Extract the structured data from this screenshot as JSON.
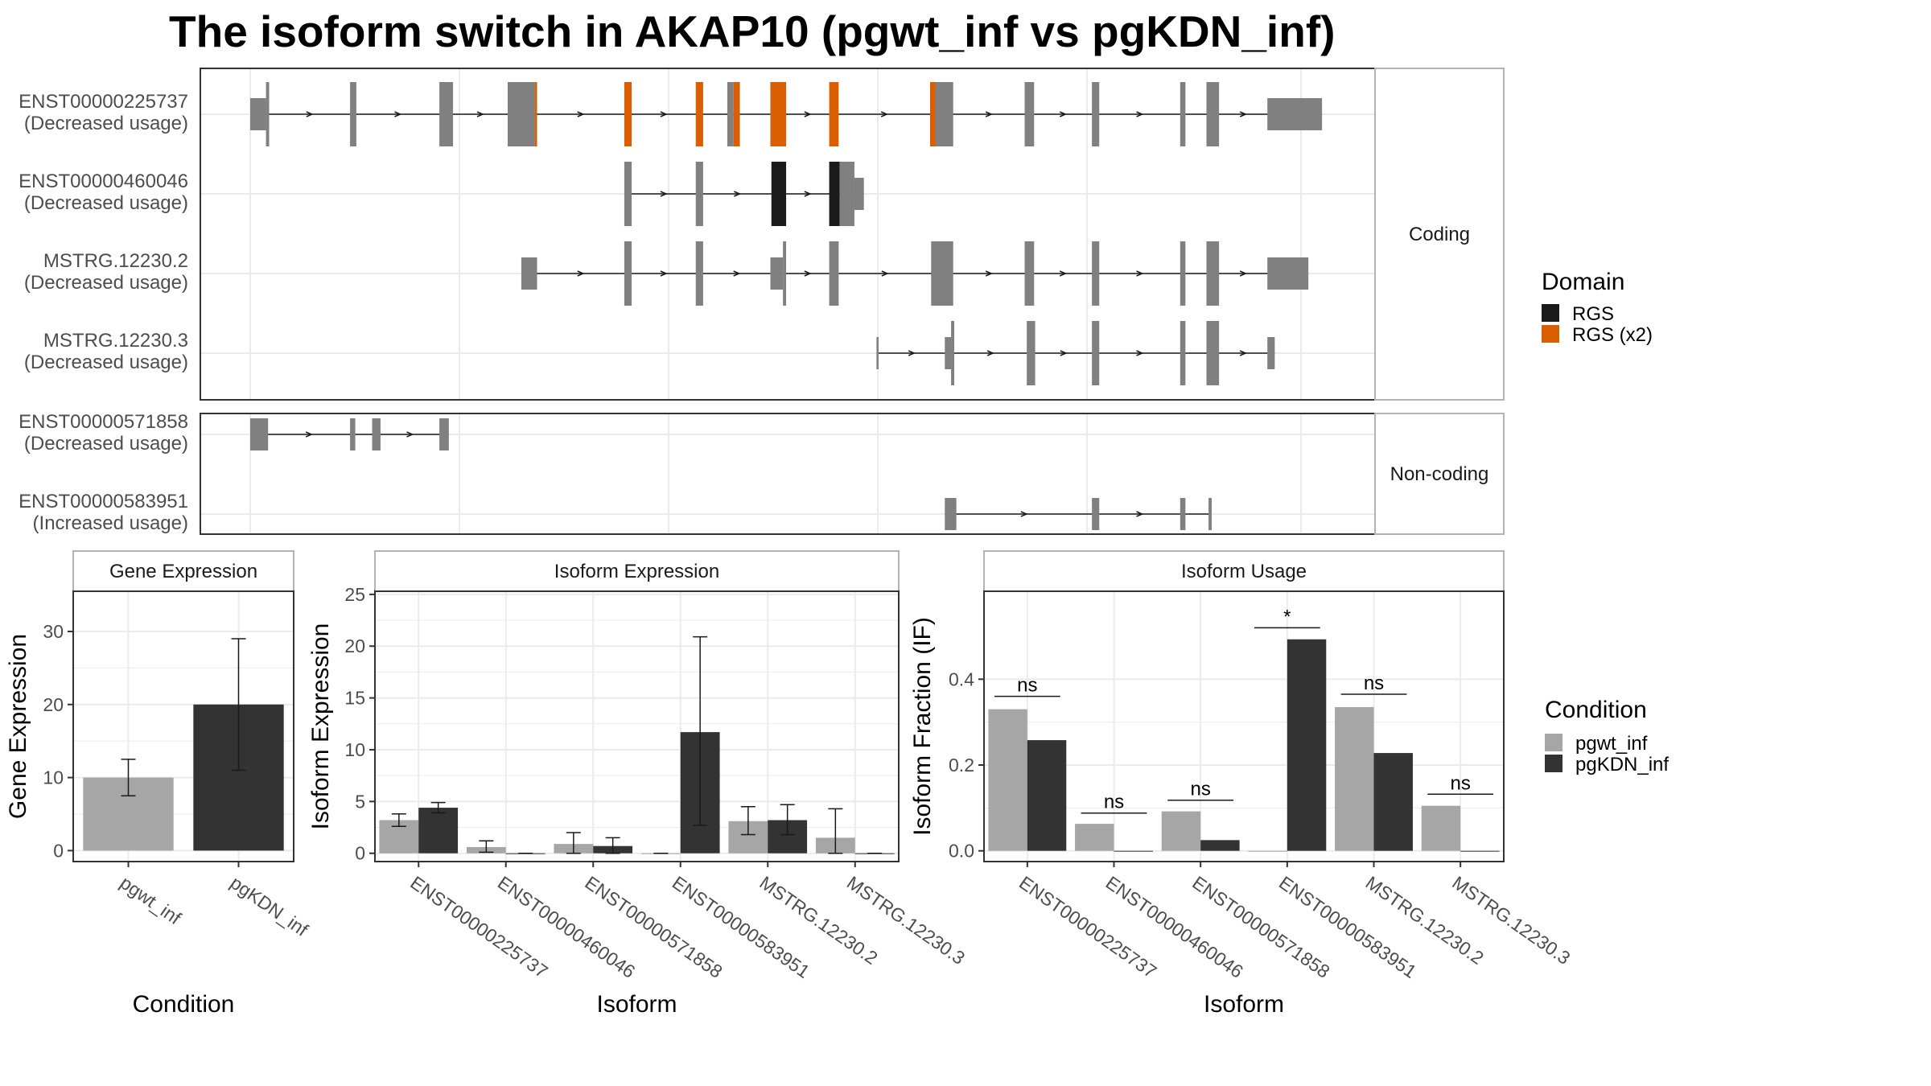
{
  "title": "The isoform switch in AKAP10 (pgwt_inf vs pgKDN_inf)",
  "structure": {
    "coords": [
      0,
      1000
    ],
    "panels": [
      {
        "label": "Coding",
        "transcripts": [
          {
            "id": "ENST00000225737",
            "note": "(Decreased usage)",
            "start": 0,
            "end": 1020,
            "exons": [
              {
                "s": 0,
                "e": 15,
                "t": "utr"
              },
              {
                "s": 15,
                "e": 18,
                "t": "cds"
              },
              {
                "s": 95,
                "e": 101,
                "t": "cds"
              },
              {
                "s": 180,
                "e": 193,
                "t": "cds"
              },
              {
                "s": 245,
                "e": 271,
                "t": "cds"
              },
              {
                "s": 271,
                "e": 273,
                "t": "RGS (x2)"
              },
              {
                "s": 356,
                "e": 363,
                "t": "RGS (x2)"
              },
              {
                "s": 424,
                "e": 431,
                "t": "RGS (x2)"
              },
              {
                "s": 454,
                "e": 460,
                "t": "cds"
              },
              {
                "s": 460,
                "e": 466,
                "t": "RGS (x2)"
              },
              {
                "s": 495,
                "e": 510,
                "t": "RGS (x2)"
              },
              {
                "s": 551,
                "e": 560,
                "t": "RGS (x2)"
              },
              {
                "s": 647,
                "e": 652,
                "t": "RGS (x2)"
              },
              {
                "s": 652,
                "e": 669,
                "t": "cds"
              },
              {
                "s": 737,
                "e": 746,
                "t": "cds"
              },
              {
                "s": 801,
                "e": 808,
                "t": "cds"
              },
              {
                "s": 885,
                "e": 890,
                "t": "cds"
              },
              {
                "s": 910,
                "e": 922,
                "t": "cds"
              },
              {
                "s": 968,
                "e": 1020,
                "t": "utr"
              }
            ]
          },
          {
            "id": "ENST00000460046",
            "note": "(Decreased usage)",
            "start": 356,
            "end": 584,
            "exons": [
              {
                "s": 356,
                "e": 363,
                "t": "cds"
              },
              {
                "s": 424,
                "e": 431,
                "t": "cds"
              },
              {
                "s": 496,
                "e": 510,
                "t": "RGS"
              },
              {
                "s": 551,
                "e": 561,
                "t": "RGS"
              },
              {
                "s": 561,
                "e": 575,
                "t": "cds"
              },
              {
                "s": 575,
                "e": 584,
                "t": "utr"
              }
            ]
          },
          {
            "id": "MSTRG.12230.2",
            "note": "(Decreased usage)",
            "start": 258,
            "end": 1007,
            "exons": [
              {
                "s": 258,
                "e": 273,
                "t": "utr"
              },
              {
                "s": 356,
                "e": 363,
                "t": "cds"
              },
              {
                "s": 424,
                "e": 431,
                "t": "cds"
              },
              {
                "s": 495,
                "e": 507,
                "t": "utr"
              },
              {
                "s": 507,
                "e": 510,
                "t": "cds"
              },
              {
                "s": 551,
                "e": 560,
                "t": "cds"
              },
              {
                "s": 648,
                "e": 669,
                "t": "cds"
              },
              {
                "s": 737,
                "e": 746,
                "t": "cds"
              },
              {
                "s": 801,
                "e": 808,
                "t": "cds"
              },
              {
                "s": 885,
                "e": 890,
                "t": "cds"
              },
              {
                "s": 910,
                "e": 922,
                "t": "cds"
              },
              {
                "s": 968,
                "e": 1007,
                "t": "utr"
              }
            ]
          },
          {
            "id": "MSTRG.12230.3",
            "note": "(Decreased usage)",
            "start": 596,
            "end": 975,
            "exons": [
              {
                "s": 596,
                "e": 598,
                "t": "utr"
              },
              {
                "s": 661,
                "e": 667,
                "t": "utr"
              },
              {
                "s": 667,
                "e": 670,
                "t": "cds"
              },
              {
                "s": 739,
                "e": 747,
                "t": "cds"
              },
              {
                "s": 801,
                "e": 808,
                "t": "cds"
              },
              {
                "s": 885,
                "e": 890,
                "t": "cds"
              },
              {
                "s": 910,
                "e": 922,
                "t": "cds"
              },
              {
                "s": 968,
                "e": 975,
                "t": "utr"
              }
            ]
          }
        ]
      },
      {
        "label": "Non-coding",
        "transcripts": [
          {
            "id": "ENST00000571858",
            "note": "(Decreased usage)",
            "start": 0,
            "end": 189,
            "exons": [
              {
                "s": 0,
                "e": 17,
                "t": "nc"
              },
              {
                "s": 95,
                "e": 100,
                "t": "nc"
              },
              {
                "s": 116,
                "e": 124,
                "t": "nc"
              },
              {
                "s": 180,
                "e": 189,
                "t": "nc"
              }
            ]
          },
          {
            "id": "ENST00000583951",
            "note": "(Increased usage)",
            "start": 661,
            "end": 915,
            "exons": [
              {
                "s": 661,
                "e": 672,
                "t": "nc"
              },
              {
                "s": 801,
                "e": 808,
                "t": "nc"
              },
              {
                "s": 885,
                "e": 890,
                "t": "nc"
              },
              {
                "s": 912,
                "e": 915,
                "t": "nc"
              }
            ]
          }
        ]
      }
    ]
  },
  "legend_domain": {
    "title": "Domain",
    "items": [
      {
        "label": "RGS",
        "color": "#1a1a1a"
      },
      {
        "label": "RGS (x2)",
        "color": "#d95f02"
      }
    ]
  },
  "legend_condition": {
    "title": "Condition",
    "items": [
      {
        "label": "pgwt_inf",
        "color": "#a6a6a6"
      },
      {
        "label": "pgKDN_inf",
        "color": "#333333"
      }
    ]
  },
  "colors": {
    "exon": "#808080",
    "rgs": "#1a1a1a",
    "rgs_x2": "#d95f02",
    "grid": "#ebebeb"
  },
  "chart_data": [
    {
      "type": "bar",
      "title": "Gene Expression",
      "xlabel": "Condition",
      "ylabel": "Gene Expression",
      "categories": [
        "pgwt_inf",
        "pgKDN_inf"
      ],
      "values": [
        10,
        20
      ],
      "error_low": [
        7.5,
        11
      ],
      "error_high": [
        12.5,
        29
      ],
      "ylim": [
        -1.5,
        35.5
      ],
      "yticks": [
        0,
        10,
        20,
        30
      ],
      "grid": true
    },
    {
      "type": "bar",
      "title": "Isoform Expression",
      "xlabel": "Isoform",
      "ylabel": "Isoform Expression",
      "categories": [
        "ENST00000225737",
        "ENST00000460046",
        "ENST00000571858",
        "ENST00000583951",
        "MSTRG.12230.2",
        "MSTRG.12230.3"
      ],
      "series": [
        {
          "name": "pgwt_inf",
          "values": [
            3.2,
            0.6,
            0.9,
            0,
            3.1,
            1.5
          ],
          "error_low": [
            2.6,
            0.1,
            0,
            0,
            1.8,
            0
          ],
          "error_high": [
            3.8,
            1.2,
            2.0,
            0,
            4.5,
            4.3
          ]
        },
        {
          "name": "pgKDN_inf",
          "values": [
            4.4,
            0,
            0.7,
            11.7,
            3.2,
            0
          ],
          "error_low": [
            3.9,
            0,
            0,
            2.7,
            1.8,
            0
          ],
          "error_high": [
            4.9,
            0,
            1.5,
            20.9,
            4.7,
            0
          ]
        }
      ],
      "ylim": [
        -0.8,
        25.3
      ],
      "yticks": [
        0,
        5,
        10,
        15,
        20,
        25
      ],
      "grid": true
    },
    {
      "type": "bar",
      "title": "Isoform Usage",
      "xlabel": "Isoform",
      "ylabel": "Isoform Fraction (IF)",
      "categories": [
        "ENST00000225737",
        "ENST00000460046",
        "ENST00000571858",
        "ENST00000583951",
        "MSTRG.12230.2",
        "MSTRG.12230.3"
      ],
      "series": [
        {
          "name": "pgwt_inf",
          "values": [
            0.33,
            0.063,
            0.092,
            0,
            0.335,
            0.105
          ]
        },
        {
          "name": "pgKDN_inf",
          "values": [
            0.258,
            0,
            0.025,
            0.493,
            0.228,
            0
          ]
        }
      ],
      "significance": [
        "ns",
        "ns",
        "ns",
        "*",
        "ns",
        "ns"
      ],
      "significance_y": [
        0.36,
        0.088,
        0.118,
        0.52,
        0.365,
        0.132
      ],
      "ylim": [
        -0.025,
        0.605
      ],
      "yticks": [
        0.0,
        0.2,
        0.4
      ],
      "ytick_labels": [
        "0.0",
        "0.2",
        "0.4"
      ],
      "grid": true
    }
  ]
}
